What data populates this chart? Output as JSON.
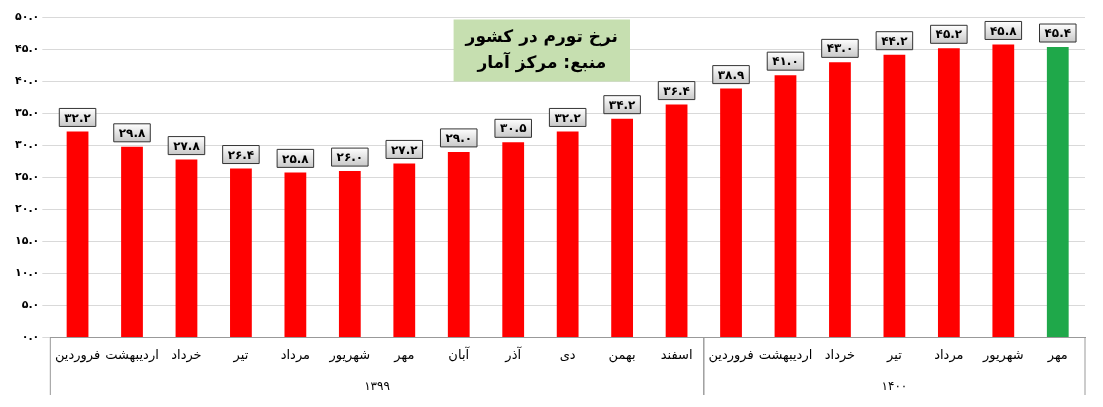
{
  "chart_data": {
    "type": "bar",
    "title": "نرخ تورم در کشور",
    "subtitle": "منبع: مرکز آمار",
    "categories": [
      "فروردین",
      "اردیبهشت",
      "خرداد",
      "تیر",
      "مرداد",
      "شهریور",
      "مهر",
      "آبان",
      "آذر",
      "دی",
      "بهمن",
      "اسفند",
      "فروردین",
      "اردیبهشت",
      "خرداد",
      "تیر",
      "مرداد",
      "شهریور",
      "مهر"
    ],
    "values": [
      32.2,
      29.8,
      27.8,
      26.4,
      25.8,
      26.0,
      27.2,
      29.0,
      30.5,
      32.2,
      34.2,
      36.4,
      38.9,
      41.0,
      43.0,
      44.2,
      45.2,
      45.8,
      45.4
    ],
    "value_labels": [
      "۳۲.۲",
      "۲۹.۸",
      "۲۷.۸",
      "۲۶.۴",
      "۲۵.۸",
      "۲۶.۰",
      "۲۷.۲",
      "۲۹.۰",
      "۳۰.۵",
      "۳۲.۲",
      "۳۴.۲",
      "۳۶.۴",
      "۳۸.۹",
      "۴۱.۰",
      "۴۳.۰",
      "۴۴.۲",
      "۴۵.۲",
      "۴۵.۸",
      "۴۵.۴"
    ],
    "colors": [
      "#ff0000",
      "#ff0000",
      "#ff0000",
      "#ff0000",
      "#ff0000",
      "#ff0000",
      "#ff0000",
      "#ff0000",
      "#ff0000",
      "#ff0000",
      "#ff0000",
      "#ff0000",
      "#ff0000",
      "#ff0000",
      "#ff0000",
      "#ff0000",
      "#ff0000",
      "#ff0000",
      "#1fa84a"
    ],
    "ylim": [
      0,
      50
    ],
    "yticks": [
      {
        "value": 0,
        "label": "۰.۰"
      },
      {
        "value": 5,
        "label": "۵.۰"
      },
      {
        "value": 10,
        "label": "۱۰.۰"
      },
      {
        "value": 15,
        "label": "۱۵.۰"
      },
      {
        "value": 20,
        "label": "۲۰.۰"
      },
      {
        "value": 25,
        "label": "۲۵.۰"
      },
      {
        "value": 30,
        "label": "۳۰.۰"
      },
      {
        "value": 35,
        "label": "۳۵.۰"
      },
      {
        "value": 40,
        "label": "۴۰.۰"
      },
      {
        "value": 45,
        "label": "۴۵.۰"
      },
      {
        "value": 50,
        "label": "۵۰.۰"
      }
    ],
    "annotations": [
      "۱۳۹۹",
      "۱۴۰۰"
    ],
    "grid": "y",
    "legend": false
  }
}
